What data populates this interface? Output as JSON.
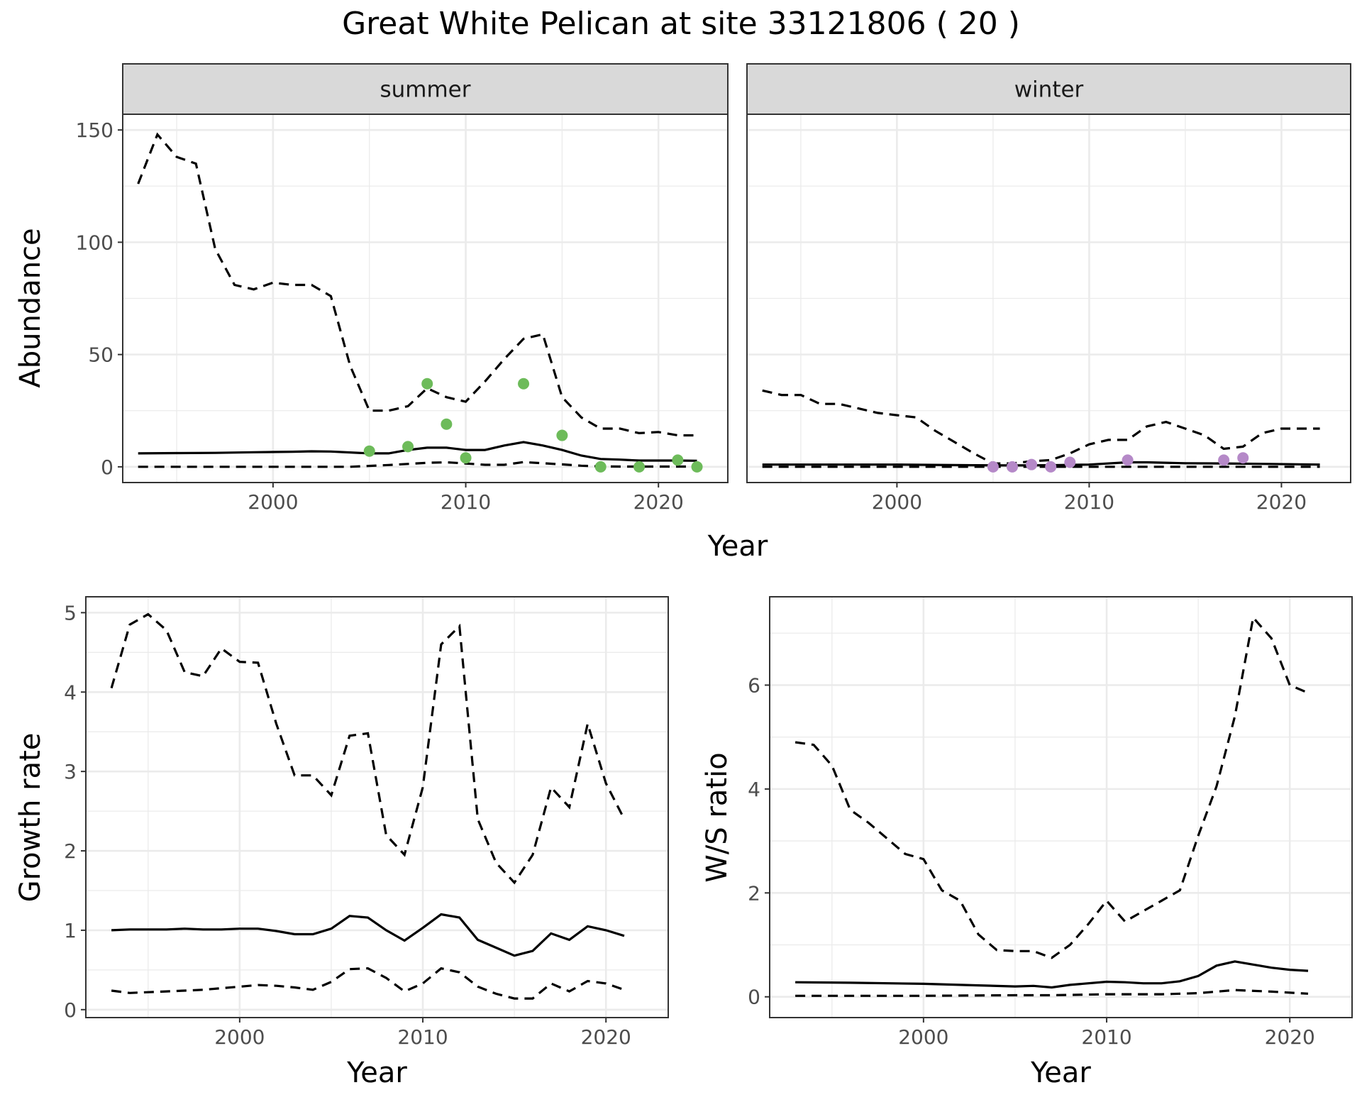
{
  "title": "Great White Pelican at site 33121806 ( 20 )",
  "colors": {
    "summer_points": "#6dbb5a",
    "winter_points": "#b589c8",
    "lines": "#000000",
    "strip": "#d9d9d9"
  },
  "chart_data": [
    {
      "type": "line",
      "facet": "summer",
      "strip_label": "summer",
      "xlabel": "Year",
      "ylabel": "Abundance",
      "xlim": [
        1992.2,
        2023.6
      ],
      "ylim": [
        -7,
        157
      ],
      "xticks": [
        2000,
        2010,
        2020
      ],
      "yticks": [
        0,
        50,
        100,
        150
      ],
      "grid": true,
      "series": [
        {
          "style": "solid",
          "x": [
            1993,
            1995,
            1997,
            1999,
            2001,
            2002,
            2003,
            2005,
            2006,
            2007,
            2008,
            2009,
            2010,
            2011,
            2012,
            2013,
            2014,
            2015,
            2016,
            2017,
            2018,
            2019,
            2020,
            2021,
            2022
          ],
          "y": [
            6,
            6.1,
            6.2,
            6.5,
            6.7,
            6.9,
            6.8,
            6,
            6,
            7.5,
            8.5,
            8.5,
            7.5,
            7.5,
            9.5,
            11,
            9.5,
            7.5,
            5,
            3.5,
            3.2,
            2.8,
            2.8,
            2.8,
            2.7
          ]
        },
        {
          "style": "dashed",
          "x": [
            1993,
            1994,
            1995,
            1996,
            1997,
            1998,
            1999,
            2000,
            2001,
            2002,
            2003,
            2004,
            2005,
            2006,
            2007,
            2008,
            2009,
            2010,
            2011,
            2012,
            2013,
            2014,
            2015,
            2016,
            2017,
            2018,
            2019,
            2020,
            2021,
            2022
          ],
          "y": [
            126,
            148,
            138,
            135,
            97,
            81,
            79,
            82,
            81,
            81,
            76,
            45,
            25,
            25,
            27,
            35,
            31,
            29,
            38,
            48,
            57,
            59,
            31,
            22,
            17,
            17,
            15,
            15.5,
            14,
            14
          ]
        },
        {
          "style": "dashed",
          "x": [
            1993,
            2004,
            2006,
            2008,
            2009,
            2010,
            2011,
            2012,
            2013,
            2014,
            2015,
            2016,
            2017,
            2018,
            2019,
            2020,
            2021,
            2022
          ],
          "y": [
            0,
            0,
            0.8,
            1.8,
            2,
            1.5,
            0.9,
            0.9,
            2.1,
            1.6,
            1.1,
            0.5,
            0.2,
            0.1,
            0.1,
            0.1,
            0.1,
            0.1
          ]
        },
        {
          "style": "points",
          "color": "#6dbb5a",
          "x": [
            2005,
            2007,
            2008,
            2009,
            2010,
            2013,
            2015,
            2017,
            2019,
            2021,
            2022
          ],
          "y": [
            7,
            9,
            37,
            19,
            4,
            37,
            14,
            0,
            0,
            3,
            0
          ]
        }
      ]
    },
    {
      "type": "line",
      "facet": "winter",
      "strip_label": "winter",
      "xlabel": "Year",
      "ylabel": "Abundance",
      "xlim": [
        1992.2,
        2023.6
      ],
      "ylim": [
        -7,
        157
      ],
      "xticks": [
        2000,
        2010,
        2020
      ],
      "yticks": [
        0,
        50,
        100,
        150
      ],
      "grid": true,
      "series": [
        {
          "style": "solid",
          "x": [
            1993,
            2000,
            2004,
            2006,
            2008,
            2010,
            2012,
            2013,
            2015,
            2017,
            2019,
            2022
          ],
          "y": [
            1,
            1,
            0.7,
            0.6,
            0.7,
            1,
            2,
            2,
            1.6,
            1.5,
            1.3,
            1
          ]
        },
        {
          "style": "dashed",
          "x": [
            1993,
            1994,
            1995,
            1996,
            1997,
            1998,
            1999,
            2000,
            2001,
            2002,
            2003,
            2004,
            2005,
            2006,
            2007,
            2008,
            2009,
            2010,
            2011,
            2012,
            2013,
            2014,
            2015,
            2016,
            2017,
            2018,
            2019,
            2020,
            2021,
            2022
          ],
          "y": [
            34,
            32,
            32,
            28,
            28,
            26,
            24,
            23,
            22,
            16,
            11,
            6,
            1.5,
            1.5,
            2.5,
            3,
            6,
            10,
            12,
            12,
            18,
            20,
            17,
            14,
            8,
            9,
            15,
            17,
            17,
            17
          ]
        },
        {
          "style": "dashed",
          "x": [
            1993,
            2022
          ],
          "y": [
            0,
            0
          ]
        },
        {
          "style": "points",
          "color": "#b589c8",
          "x": [
            2005,
            2006,
            2007,
            2008,
            2009,
            2012,
            2017,
            2018
          ],
          "y": [
            0,
            0,
            1,
            0,
            2,
            3,
            3,
            4
          ]
        }
      ]
    },
    {
      "type": "line",
      "facet": "growth",
      "xlabel": "Year",
      "ylabel": "Growth rate",
      "xlim": [
        1991.6,
        2023.4
      ],
      "ylim": [
        -0.1,
        5.2
      ],
      "xticks": [
        2000,
        2010,
        2020
      ],
      "yticks": [
        0,
        1,
        2,
        3,
        4,
        5
      ],
      "grid": true,
      "series": [
        {
          "style": "solid",
          "x": [
            1993,
            1994,
            1995,
            1996,
            1997,
            1998,
            1999,
            2000,
            2001,
            2002,
            2003,
            2004,
            2005,
            2006,
            2007,
            2008,
            2009,
            2010,
            2011,
            2012,
            2013,
            2014,
            2015,
            2016,
            2017,
            2018,
            2019,
            2020,
            2021
          ],
          "y": [
            1,
            1.01,
            1.01,
            1.01,
            1.02,
            1.01,
            1.01,
            1.02,
            1.02,
            0.99,
            0.95,
            0.95,
            1.02,
            1.18,
            1.16,
            1,
            0.87,
            1.03,
            1.2,
            1.16,
            0.88,
            0.78,
            0.68,
            0.74,
            0.96,
            0.88,
            1.05,
            1,
            0.93
          ]
        },
        {
          "style": "dashed",
          "x": [
            1993,
            1994,
            1995,
            1996,
            1997,
            1998,
            1999,
            2000,
            2001,
            2002,
            2003,
            2004,
            2005,
            2006,
            2007,
            2008,
            2009,
            2010,
            2011,
            2012,
            2013,
            2014,
            2015,
            2016,
            2017,
            2018,
            2019,
            2020,
            2021
          ],
          "y": [
            4.05,
            4.85,
            4.98,
            4.78,
            4.25,
            4.2,
            4.55,
            4.38,
            4.37,
            3.6,
            2.95,
            2.95,
            2.7,
            3.45,
            3.48,
            2.2,
            1.95,
            2.8,
            4.6,
            4.83,
            2.4,
            1.85,
            1.6,
            1.95,
            2.8,
            2.55,
            3.6,
            2.85,
            2.4
          ]
        },
        {
          "style": "dashed",
          "x": [
            1993,
            1994,
            1995,
            1996,
            1997,
            1998,
            1999,
            2000,
            2001,
            2002,
            2003,
            2004,
            2005,
            2006,
            2007,
            2008,
            2009,
            2010,
            2011,
            2012,
            2013,
            2014,
            2015,
            2016,
            2017,
            2018,
            2019,
            2020,
            2021
          ],
          "y": [
            0.24,
            0.21,
            0.22,
            0.23,
            0.24,
            0.25,
            0.27,
            0.29,
            0.31,
            0.3,
            0.28,
            0.25,
            0.35,
            0.51,
            0.52,
            0.4,
            0.23,
            0.33,
            0.52,
            0.47,
            0.29,
            0.2,
            0.14,
            0.14,
            0.33,
            0.23,
            0.36,
            0.33,
            0.25
          ]
        }
      ]
    },
    {
      "type": "line",
      "facet": "ratio",
      "xlabel": "Year",
      "ylabel": "W/S ratio",
      "xlim": [
        1991.6,
        2023.4
      ],
      "ylim": [
        -0.4,
        7.7
      ],
      "xticks": [
        2000,
        2010,
        2020
      ],
      "yticks": [
        0,
        2,
        4,
        6
      ],
      "grid": true,
      "series": [
        {
          "style": "solid",
          "x": [
            1993,
            1996,
            2000,
            2003,
            2005,
            2006,
            2007,
            2008,
            2010,
            2011,
            2012,
            2013,
            2014,
            2015,
            2016,
            2017,
            2018,
            2019,
            2020,
            2021
          ],
          "y": [
            0.28,
            0.27,
            0.25,
            0.22,
            0.2,
            0.21,
            0.18,
            0.23,
            0.29,
            0.28,
            0.26,
            0.26,
            0.3,
            0.4,
            0.6,
            0.68,
            0.62,
            0.56,
            0.52,
            0.5
          ]
        },
        {
          "style": "dashed",
          "x": [
            1993,
            1994,
            1995,
            1996,
            1997,
            1998,
            1999,
            2000,
            2001,
            2002,
            2003,
            2004,
            2005,
            2006,
            2007,
            2008,
            2009,
            2010,
            2011,
            2012,
            2013,
            2014,
            2015,
            2016,
            2017,
            2018,
            2019,
            2020,
            2021
          ],
          "y": [
            4.9,
            4.85,
            4.45,
            3.6,
            3.35,
            3.05,
            2.75,
            2.65,
            2.05,
            1.85,
            1.2,
            0.9,
            0.88,
            0.88,
            0.75,
            1,
            1.4,
            1.85,
            1.45,
            1.65,
            1.85,
            2.05,
            3.1,
            4.05,
            5.4,
            7.3,
            6.9,
            6,
            5.85
          ]
        },
        {
          "style": "dashed",
          "x": [
            1993,
            2000,
            2005,
            2007,
            2010,
            2013,
            2015,
            2017,
            2019,
            2021
          ],
          "y": [
            0.02,
            0.02,
            0.03,
            0.03,
            0.05,
            0.05,
            0.07,
            0.13,
            0.1,
            0.06
          ]
        }
      ]
    }
  ]
}
